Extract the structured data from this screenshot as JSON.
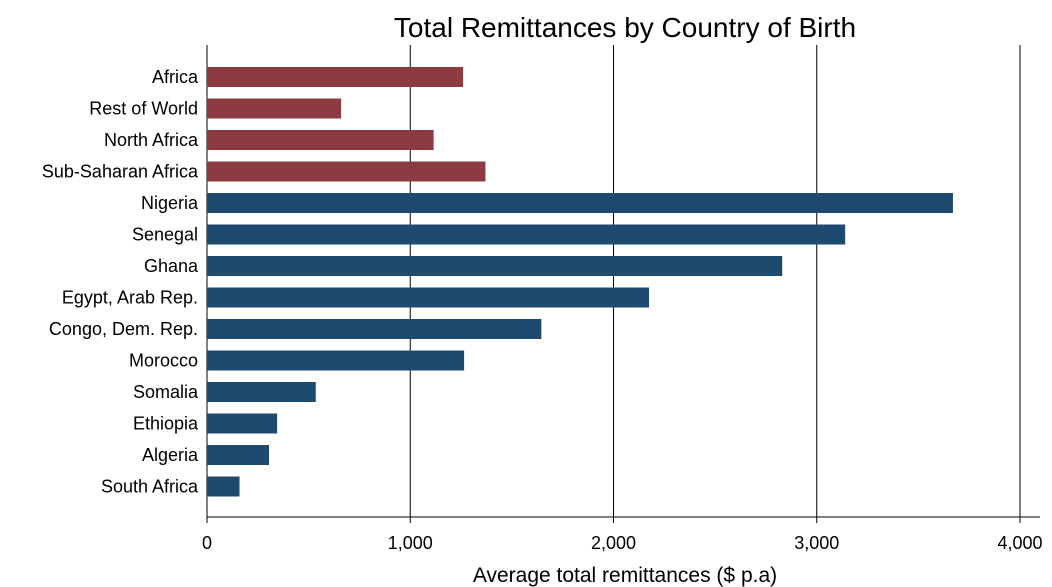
{
  "chart_data": {
    "type": "bar",
    "orientation": "horizontal",
    "title": "Total Remittances by Country of Birth",
    "xlabel": "Average total remittances ($ p.a)",
    "ylabel": "",
    "xlim": [
      0,
      4000
    ],
    "xticks": [
      0,
      1000,
      2000,
      3000,
      4000
    ],
    "xtick_labels": [
      "0",
      "1,000",
      "2,000",
      "3,000",
      "4,000"
    ],
    "grid": "vertical",
    "legend": "none",
    "colors": {
      "region": "#8e3a42",
      "country": "#1f4a70"
    },
    "categories": [
      "Africa",
      "Rest of World",
      "North Africa",
      "Sub-Saharan Africa",
      "Nigeria",
      "Senegal",
      "Ghana",
      "Egypt, Arab Rep.",
      "Congo, Dem. Rep.",
      "Morocco",
      "Somalia",
      "Ethiopia",
      "Algeria",
      "South Africa"
    ],
    "values": [
      1260,
      660,
      1115,
      1370,
      3670,
      3140,
      2830,
      2175,
      1645,
      1265,
      535,
      345,
      305,
      160
    ],
    "groups": [
      "region",
      "region",
      "region",
      "region",
      "country",
      "country",
      "country",
      "country",
      "country",
      "country",
      "country",
      "country",
      "country",
      "country"
    ]
  }
}
